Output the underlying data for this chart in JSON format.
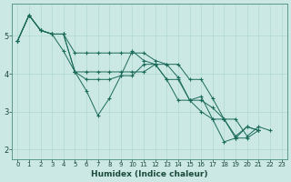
{
  "xlabel": "Humidex (Indice chaleur)",
  "bg_color": "#cce8e4",
  "grid_color": "#b0d8d0",
  "line_color": "#1a6b5a",
  "marker_color": "#1a6b5a",
  "xlim": [
    -0.5,
    23.5
  ],
  "ylim": [
    1.75,
    5.85
  ],
  "yticks": [
    2,
    3,
    4,
    5
  ],
  "xticks": [
    0,
    1,
    2,
    3,
    4,
    5,
    6,
    7,
    8,
    9,
    10,
    11,
    12,
    13,
    14,
    15,
    16,
    17,
    18,
    19,
    20,
    21,
    22,
    23
  ],
  "series": [
    {
      "x": [
        0,
        1,
        2,
        3,
        4,
        5,
        6,
        7,
        8,
        9,
        10,
        11,
        12,
        13,
        14,
        15,
        16,
        17,
        18,
        19,
        20,
        21,
        22,
        23
      ],
      "y": [
        4.87,
        5.55,
        5.15,
        5.05,
        4.6,
        4.05,
        3.55,
        2.9,
        3.35,
        3.95,
        4.6,
        4.35,
        4.25,
        4.25,
        3.9,
        3.3,
        3.4,
        2.8,
        2.2,
        2.3,
        2.6,
        2.5,
        null,
        null
      ]
    },
    {
      "x": [
        0,
        1,
        2,
        3,
        4,
        5,
        6,
        7,
        8,
        9,
        10,
        11,
        12,
        13,
        14,
        15,
        16,
        17,
        18,
        19,
        20,
        21,
        22,
        23
      ],
      "y": [
        4.87,
        5.55,
        5.15,
        5.05,
        5.05,
        4.05,
        3.85,
        3.85,
        3.85,
        3.95,
        3.95,
        4.25,
        4.25,
        3.85,
        3.3,
        3.3,
        3.0,
        2.8,
        2.8,
        2.3,
        2.3,
        2.5,
        null,
        null
      ]
    },
    {
      "x": [
        0,
        1,
        2,
        3,
        4,
        5,
        6,
        7,
        8,
        9,
        10,
        11,
        12,
        13,
        14,
        15,
        16,
        17,
        18,
        19,
        20,
        21,
        22,
        23
      ],
      "y": [
        4.87,
        5.55,
        5.15,
        5.05,
        5.05,
        4.05,
        4.05,
        4.05,
        4.05,
        4.05,
        4.05,
        4.05,
        4.25,
        3.85,
        3.85,
        3.3,
        3.3,
        3.1,
        2.8,
        2.35,
        2.6,
        2.5,
        null,
        null
      ]
    },
    {
      "x": [
        0,
        1,
        2,
        3,
        4,
        5,
        6,
        7,
        8,
        9,
        10,
        11,
        12,
        13,
        14,
        15,
        16,
        17,
        18,
        19,
        20,
        21,
        22,
        23
      ],
      "y": [
        4.87,
        5.55,
        5.15,
        5.05,
        5.05,
        4.55,
        4.55,
        4.55,
        4.55,
        4.55,
        4.55,
        4.55,
        4.35,
        4.25,
        4.25,
        3.85,
        3.85,
        3.35,
        2.8,
        2.8,
        2.35,
        2.6,
        2.5,
        null
      ]
    }
  ]
}
